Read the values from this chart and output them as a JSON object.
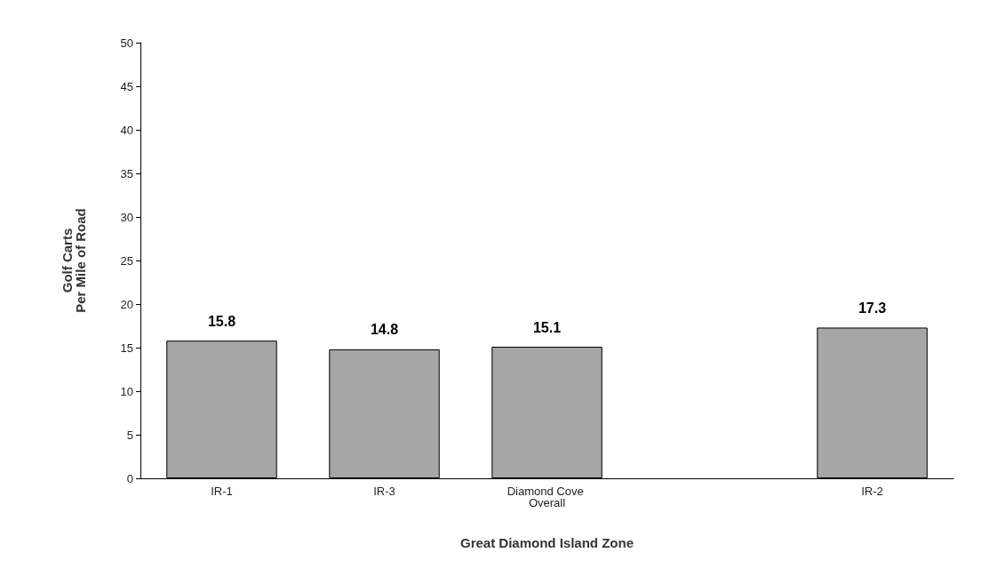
{
  "chart_data": {
    "type": "bar",
    "xlabel": "Great Diamond Island Zone",
    "ylabel": "Golf Carts\nPer Mile of Road",
    "categories": [
      "IR-1",
      "IR-3",
      "Diamond Cove Overall",
      null,
      "IR-2"
    ],
    "values": [
      15.8,
      14.8,
      15.1,
      null,
      17.3
    ],
    "color": "#a6a6a6",
    "ylim": [
      0,
      50
    ],
    "yticks": [
      0,
      5,
      10,
      15,
      20,
      25,
      30,
      35,
      40,
      45,
      50
    ],
    "data_labels": true,
    "grid": false
  }
}
